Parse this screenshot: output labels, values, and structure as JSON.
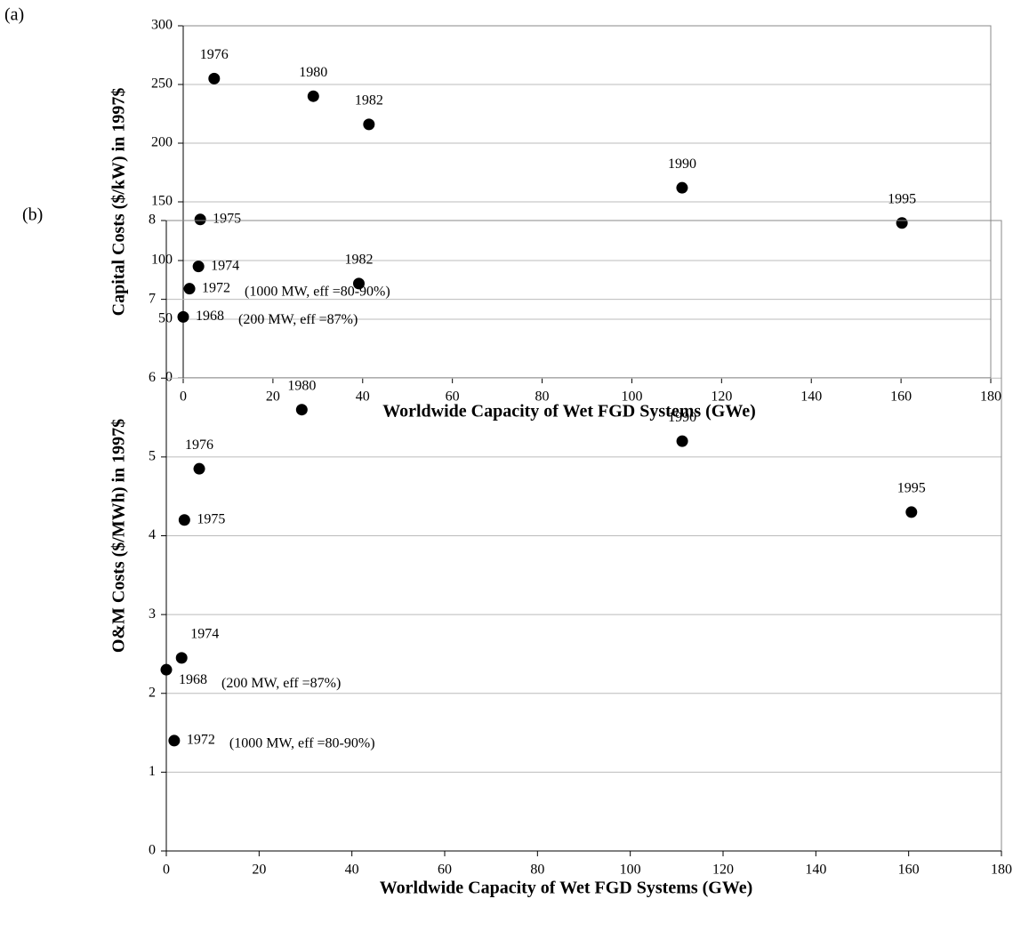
{
  "chart_data": [
    {
      "type": "scatter",
      "label": "(a)",
      "x_label": "Worldwide Capacity of Wet FGD Systems (GWe)",
      "y_label": "Capital Costs ($/kW) in 1997$",
      "point_labels": [
        "1968",
        "1972",
        "1974",
        "1975",
        "1976",
        "1980",
        "1982",
        "1990",
        "1995"
      ],
      "notes": [
        "(200 MW, eff =87%)",
        "(1000 MW, eff =80-90%)",
        null,
        null,
        null,
        null,
        null,
        null,
        null
      ],
      "x": [
        0,
        1.4,
        3.4,
        3.8,
        6.9,
        29,
        41.4,
        111.2,
        160.2
      ],
      "values": [
        52,
        76,
        95,
        135,
        255,
        240,
        216,
        162,
        132
      ],
      "color": "#000000",
      "xlim": [
        0,
        180
      ],
      "xticks": [
        0,
        20,
        40,
        60,
        80,
        100,
        120,
        140,
        160,
        180
      ],
      "ylim": [
        0,
        300
      ],
      "yticks": [
        0,
        50,
        100,
        150,
        200,
        250,
        300
      ],
      "grid": true
    },
    {
      "type": "scatter",
      "label": "(b)",
      "x_label": "Worldwide Capacity of Wet FGD Systems (GWe)",
      "y_label": "O&M Costs ($/MWh) in 1997$",
      "point_labels": [
        "1968",
        "1972",
        "1974",
        "1975",
        "1976",
        "1980",
        "1982",
        "1990",
        "1995"
      ],
      "notes": [
        "(200 MW, eff =87%)",
        "(1000 MW, eff =80-90%)",
        null,
        null,
        null,
        null,
        null,
        null,
        null
      ],
      "x": [
        0,
        1.7,
        3.3,
        3.9,
        7.1,
        29.2,
        41.5,
        111.2,
        160.6
      ],
      "values": [
        2.3,
        1.4,
        2.45,
        4.2,
        4.85,
        5.6,
        7.2,
        5.2,
        4.3
      ],
      "color": "#000000",
      "xlim": [
        0,
        180
      ],
      "xticks": [
        0,
        20,
        40,
        60,
        80,
        100,
        120,
        140,
        160,
        180
      ],
      "ylim": [
        0,
        8
      ],
      "yticks": [
        0,
        1,
        2,
        3,
        4,
        5,
        6,
        7,
        8
      ],
      "grid": true
    }
  ]
}
